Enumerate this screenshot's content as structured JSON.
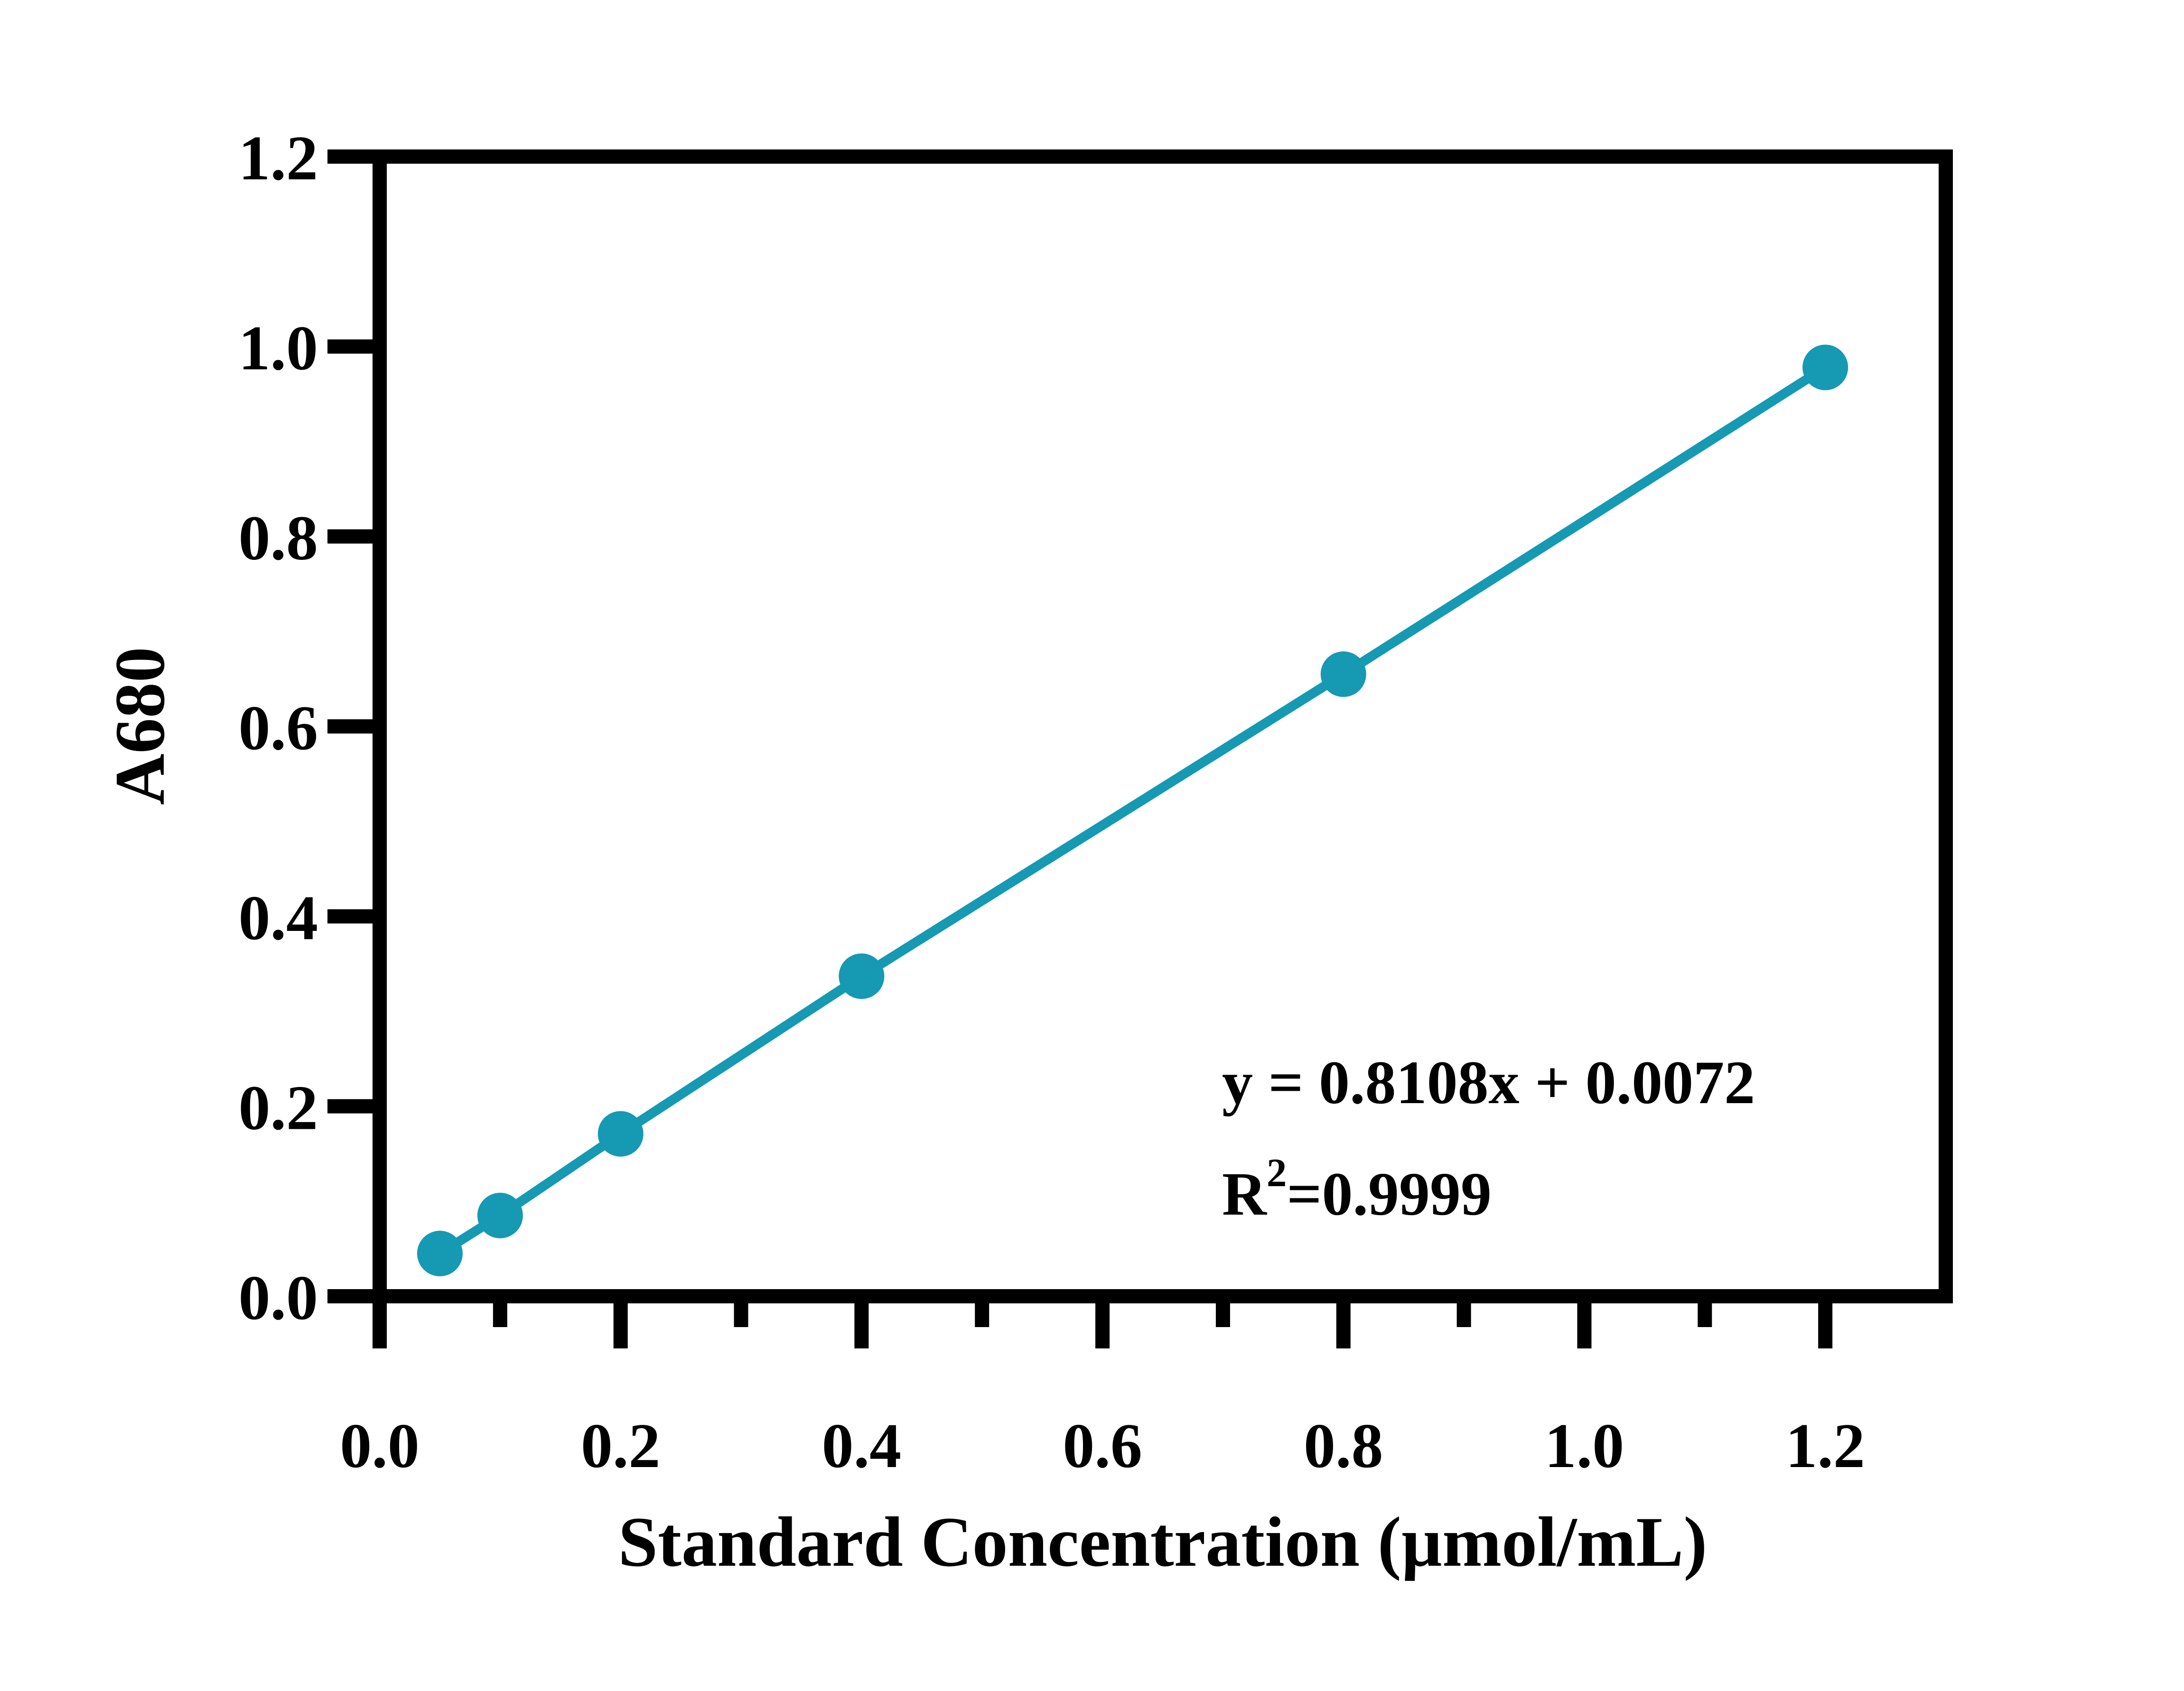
{
  "chart_data": {
    "type": "line",
    "xlabel": "Standard Concentration (µmol/mL)",
    "ylabel": "A680",
    "xlim": [
      0.0,
      1.3
    ],
    "ylim": [
      0.0,
      1.2
    ],
    "x_tick_labels": [
      "0.0",
      "0.2",
      "0.4",
      "0.6",
      "0.8",
      "1.0",
      "1.2"
    ],
    "y_tick_labels": [
      "0.0",
      "0.2",
      "0.4",
      "0.6",
      "0.8",
      "1.0",
      "1.2"
    ],
    "grid": false,
    "series": [
      {
        "x": [
          0.05,
          0.1,
          0.2,
          0.4,
          0.8,
          1.2
        ],
        "y": [
          0.045,
          0.085,
          0.171,
          0.337,
          0.655,
          0.978
        ]
      }
    ],
    "annotations": {
      "equation": "y = 0.8108x + 0.0072",
      "r_squared_prefix": "R",
      "r_squared_exponent": "2",
      "r_squared_value": "=0.9999"
    },
    "colors": {
      "series": "#1699B3",
      "axes": "#000000"
    }
  }
}
